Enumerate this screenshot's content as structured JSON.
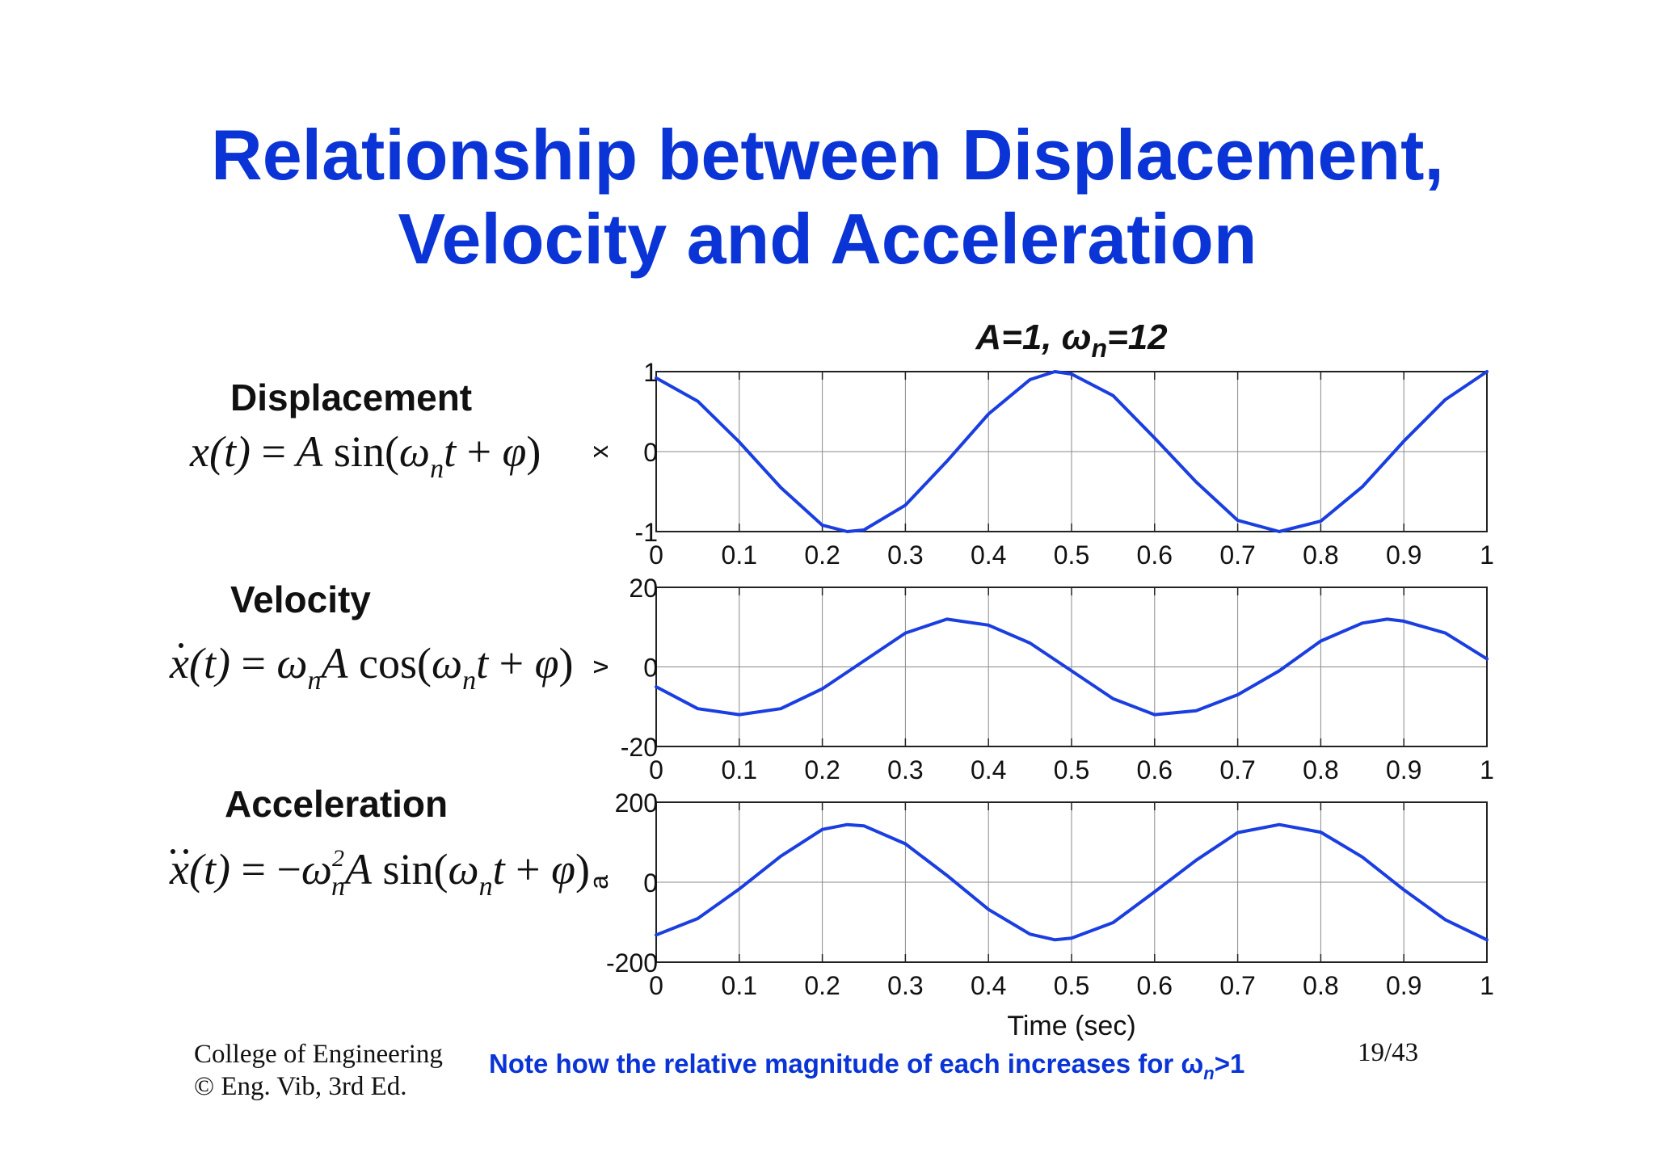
{
  "slide": {
    "title_line1": "Relationship between Displacement,",
    "title_line2": "Velocity and Acceleration"
  },
  "sections": [
    {
      "label": "Displacement"
    },
    {
      "label": "Velocity"
    },
    {
      "label": "Acceleration"
    }
  ],
  "equations": {
    "displacement": "x(t) = A sin(ωnt + φ)",
    "velocity": "ẋ(t) = ωnA cos(ωnt + φ)",
    "acceleration": "ẍ(t) = −ωn2A sin(ωnt + φ)"
  },
  "chart_data": [
    {
      "type": "line",
      "title": "A=1, ωn=12",
      "ylabel": "x",
      "xlim": [
        0,
        1
      ],
      "ylim": [
        -1,
        1
      ],
      "xticks": [
        0,
        0.1,
        0.2,
        0.3,
        0.4,
        0.5,
        0.6,
        0.7,
        0.8,
        0.9,
        1
      ],
      "xtick_labels": [
        "0",
        "0.1",
        "0.2",
        "0.3",
        "0.4",
        "0.5",
        "0.6",
        "0.7",
        "0.8",
        "0.9",
        "1"
      ],
      "yticks": [
        -1,
        0,
        1
      ],
      "ytick_labels": [
        "-1",
        "0",
        "1"
      ],
      "grid": true,
      "color": "#1a3ee0",
      "series": [
        {
          "x": [
            0,
            0.05,
            0.1,
            0.15,
            0.2,
            0.23,
            0.25,
            0.3,
            0.35,
            0.4,
            0.45,
            0.48,
            0.5,
            0.55,
            0.6,
            0.65,
            0.7,
            0.75,
            0.8,
            0.85,
            0.9,
            0.95,
            1
          ],
          "y": [
            0.92,
            0.63,
            0.12,
            -0.45,
            -0.92,
            -1.0,
            -0.98,
            -0.67,
            -0.12,
            0.47,
            0.9,
            1.0,
            0.97,
            0.7,
            0.17,
            -0.38,
            -0.86,
            -1.0,
            -0.87,
            -0.44,
            0.13,
            0.65,
            1.0
          ]
        }
      ]
    },
    {
      "type": "line",
      "title": "",
      "ylabel": "v",
      "xlim": [
        0,
        1
      ],
      "ylim": [
        -20,
        20
      ],
      "xticks": [
        0,
        0.1,
        0.2,
        0.3,
        0.4,
        0.5,
        0.6,
        0.7,
        0.8,
        0.9,
        1
      ],
      "xtick_labels": [
        "0",
        "0.1",
        "0.2",
        "0.3",
        "0.4",
        "0.5",
        "0.6",
        "0.7",
        "0.8",
        "0.9",
        "1"
      ],
      "yticks": [
        -20,
        0,
        20
      ],
      "ytick_labels": [
        "-20",
        "0",
        "20"
      ],
      "grid": true,
      "color": "#1a3ee0",
      "series": [
        {
          "x": [
            0,
            0.05,
            0.1,
            0.15,
            0.2,
            0.25,
            0.3,
            0.35,
            0.4,
            0.45,
            0.5,
            0.55,
            0.6,
            0.65,
            0.7,
            0.75,
            0.8,
            0.85,
            0.88,
            0.9,
            0.95,
            1
          ],
          "y": [
            -5,
            -10.5,
            -12,
            -10.5,
            -5.5,
            1.5,
            8.5,
            12,
            10.5,
            6,
            -1,
            -8,
            -12,
            -11,
            -7,
            -1,
            6.5,
            11,
            12,
            11.5,
            8.5,
            2
          ]
        }
      ]
    },
    {
      "type": "line",
      "title": "",
      "ylabel": "a",
      "xlabel": "Time (sec)",
      "xlim": [
        0,
        1
      ],
      "ylim": [
        -200,
        200
      ],
      "xticks": [
        0,
        0.1,
        0.2,
        0.3,
        0.4,
        0.5,
        0.6,
        0.7,
        0.8,
        0.9,
        1
      ],
      "xtick_labels": [
        "0",
        "0.1",
        "0.2",
        "0.3",
        "0.4",
        "0.5",
        "0.6",
        "0.7",
        "0.8",
        "0.9",
        "1"
      ],
      "yticks": [
        -200,
        0,
        200
      ],
      "ytick_labels": [
        "-200",
        "0",
        "200"
      ],
      "grid": true,
      "color": "#1a3ee0",
      "series": [
        {
          "x": [
            0,
            0.05,
            0.1,
            0.15,
            0.2,
            0.23,
            0.25,
            0.3,
            0.35,
            0.4,
            0.45,
            0.48,
            0.5,
            0.55,
            0.6,
            0.65,
            0.7,
            0.75,
            0.8,
            0.85,
            0.9,
            0.95,
            1
          ],
          "y": [
            -132,
            -91,
            -17,
            65,
            132,
            144,
            141,
            96,
            17,
            -68,
            -130,
            -144,
            -140,
            -101,
            -24,
            55,
            124,
            144,
            125,
            63,
            -19,
            -94,
            -144
          ]
        }
      ]
    }
  ],
  "footer": {
    "college": "College of Engineering",
    "copyright": "© Eng. Vib, 3rd Ed.",
    "note_prefix": "Note how the relative magnitude of each increases for ω",
    "note_sub": "n",
    "note_suffix": ">1",
    "page": "19/43"
  },
  "colors": {
    "title": "#0a34d6",
    "curve": "#1a3ee0",
    "note": "#0a34d6"
  }
}
